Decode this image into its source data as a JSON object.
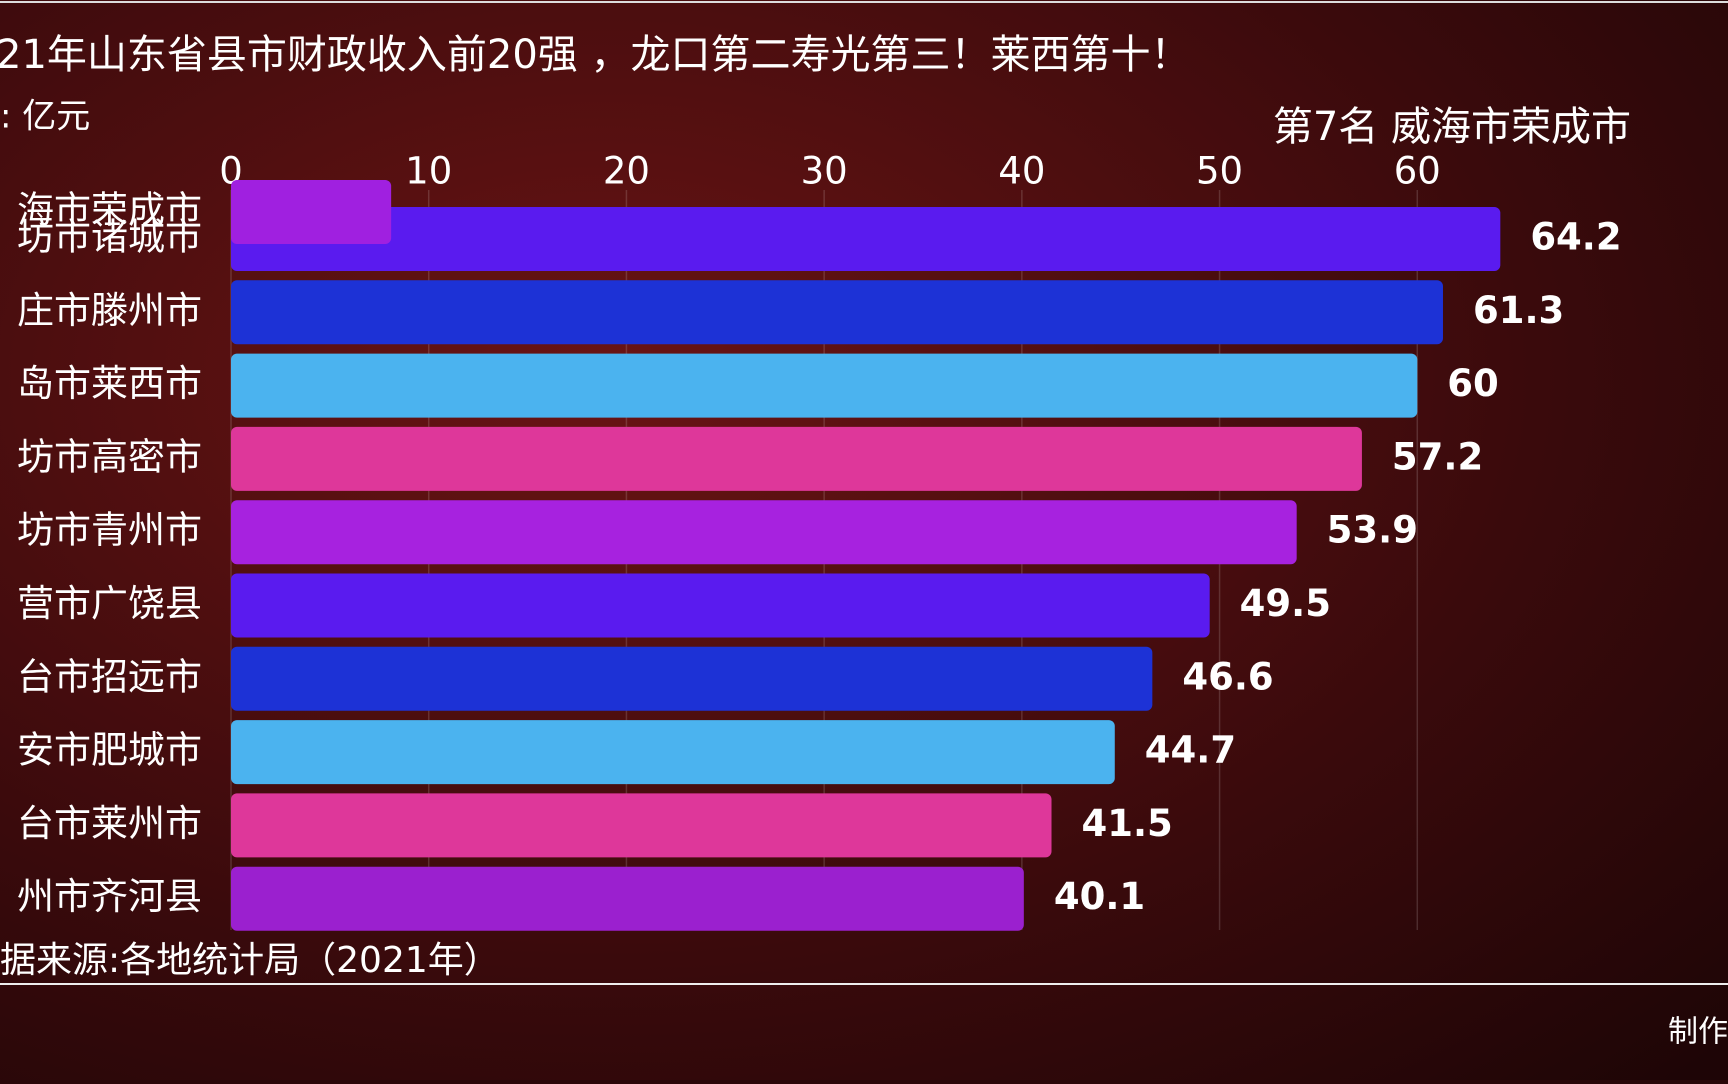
{
  "chart_data": {
    "type": "bar",
    "title": "21年山东省县市财政收入前20强 ，龙口第二寿光第三！莱西第十！",
    "unit": ": 亿元",
    "rank_label": "第7名 威海市荣成市",
    "source": "据来源:各地统计局（2021年）",
    "credit": "制作",
    "categories": [
      "坊市诸城市",
      "庄市滕州市",
      "岛市莱西市",
      "坊市高密市",
      "坊市青州市",
      "营市广饶县",
      "台市招远市",
      "安市肥城市",
      "台市莱州市",
      "州市齐河县"
    ],
    "values": [
      64.2,
      61.3,
      60,
      57.2,
      53.9,
      49.5,
      46.6,
      44.7,
      41.5,
      40.1
    ],
    "colors": [
      "#5a1bef",
      "#1d32d6",
      "#4bb3ef",
      "#de379a",
      "#a722df",
      "#5a1bef",
      "#1d32d6",
      "#4bb3ef",
      "#de379a",
      "#9b20cf"
    ],
    "moving_bar": {
      "category": "海市荣成市",
      "value": 8.1,
      "color": "#a020e0"
    },
    "xlim": [
      0,
      70
    ],
    "xticks": [
      0,
      10,
      20,
      30,
      40,
      50,
      60
    ],
    "grid": true
  }
}
